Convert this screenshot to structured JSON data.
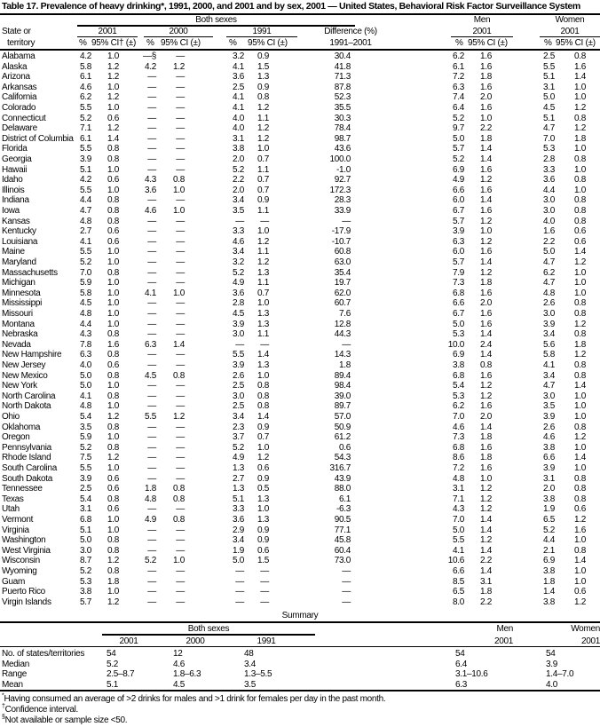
{
  "title": "Table 17. Prevalence of heavy drinking*, 1991, 2000, and 2001 and by sex, 2001 — United States, Behavioral Risk Factor Surveillance System",
  "header": {
    "both_sexes": "Both sexes",
    "men": "Men",
    "women": "Women",
    "state_line1": "State or",
    "state_line2": "territory",
    "y2001": "2001",
    "y2000": "2000",
    "y1991": "1991",
    "difference_line1": "Difference (%)",
    "difference_line2": "1991–2001",
    "pct": "%",
    "ci_first": "95% CI† (±)",
    "ci": "95% CI (±)"
  },
  "columns": [
    "State or territory",
    "2001 %",
    "2001 95% CI (±)",
    "2000 %",
    "2000 95% CI (±)",
    "1991 %",
    "1991 95% CI (±)",
    "Difference (%) 1991–2001",
    "Men 2001 %",
    "Men 2001 95% CI (±)",
    "Women 2001 %",
    "Women 2001 95% CI (±)"
  ],
  "rows": [
    [
      "Alabama",
      "4.2",
      "1.0",
      "—§",
      "—",
      "3.2",
      "0.9",
      "30.4",
      "6.2",
      "1.6",
      "2.5",
      "0.8"
    ],
    [
      "Alaska",
      "5.8",
      "1.2",
      "4.2",
      "1.2",
      "4.1",
      "1.5",
      "41.8",
      "6.1",
      "1.6",
      "5.5",
      "1.6"
    ],
    [
      "Arizona",
      "6.1",
      "1.2",
      "—",
      "—",
      "3.6",
      "1.3",
      "71.3",
      "7.2",
      "1.8",
      "5.1",
      "1.4"
    ],
    [
      "Arkansas",
      "4.6",
      "1.0",
      "—",
      "—",
      "2.5",
      "0.9",
      "87.8",
      "6.3",
      "1.6",
      "3.1",
      "1.0"
    ],
    [
      "California",
      "6.2",
      "1.2",
      "—",
      "—",
      "4.1",
      "0.8",
      "52.3",
      "7.4",
      "2.0",
      "5.0",
      "1.0"
    ],
    [
      "Colorado",
      "5.5",
      "1.0",
      "—",
      "—",
      "4.1",
      "1.2",
      "35.5",
      "6.4",
      "1.6",
      "4.5",
      "1.2"
    ],
    [
      "Connecticut",
      "5.2",
      "0.6",
      "—",
      "—",
      "4.0",
      "1.1",
      "30.3",
      "5.2",
      "1.0",
      "5.1",
      "0.8"
    ],
    [
      "Delaware",
      "7.1",
      "1.2",
      "—",
      "—",
      "4.0",
      "1.2",
      "78.4",
      "9.7",
      "2.2",
      "4.7",
      "1.2"
    ],
    [
      "District of Columbia",
      "6.1",
      "1.4",
      "—",
      "—",
      "3.1",
      "1.2",
      "98.7",
      "5.0",
      "1.8",
      "7.0",
      "1.8"
    ],
    [
      "Florida",
      "5.5",
      "0.8",
      "—",
      "—",
      "3.8",
      "1.0",
      "43.6",
      "5.7",
      "1.4",
      "5.3",
      "1.0"
    ],
    [
      "Georgia",
      "3.9",
      "0.8",
      "—",
      "—",
      "2.0",
      "0.7",
      "100.0",
      "5.2",
      "1.4",
      "2.8",
      "0.8"
    ],
    [
      "Hawaii",
      "5.1",
      "1.0",
      "—",
      "—",
      "5.2",
      "1.1",
      "-1.0",
      "6.9",
      "1.6",
      "3.3",
      "1.0"
    ],
    [
      "Idaho",
      "4.2",
      "0.6",
      "4.3",
      "0.8",
      "2.2",
      "0.7",
      "92.7",
      "4.9",
      "1.2",
      "3.6",
      "0.8"
    ],
    [
      "Illinois",
      "5.5",
      "1.0",
      "3.6",
      "1.0",
      "2.0",
      "0.7",
      "172.3",
      "6.6",
      "1.6",
      "4.4",
      "1.0"
    ],
    [
      "Indiana",
      "4.4",
      "0.8",
      "—",
      "—",
      "3.4",
      "0.9",
      "28.3",
      "6.0",
      "1.4",
      "3.0",
      "0.8"
    ],
    [
      "Iowa",
      "4.7",
      "0.8",
      "4.6",
      "1.0",
      "3.5",
      "1.1",
      "33.9",
      "6.7",
      "1.6",
      "3.0",
      "0.8"
    ],
    [
      "Kansas",
      "4.8",
      "0.8",
      "—",
      "—",
      "—",
      "—",
      "—",
      "5.7",
      "1.2",
      "4.0",
      "0.8"
    ],
    [
      "Kentucky",
      "2.7",
      "0.6",
      "—",
      "—",
      "3.3",
      "1.0",
      "-17.9",
      "3.9",
      "1.0",
      "1.6",
      "0.6"
    ],
    [
      "Louisiana",
      "4.1",
      "0.6",
      "—",
      "—",
      "4.6",
      "1.2",
      "-10.7",
      "6.3",
      "1.2",
      "2.2",
      "0.6"
    ],
    [
      "Maine",
      "5.5",
      "1.0",
      "—",
      "—",
      "3.4",
      "1.1",
      "60.8",
      "6.0",
      "1.6",
      "5.0",
      "1.4"
    ],
    [
      "Maryland",
      "5.2",
      "1.0",
      "—",
      "—",
      "3.2",
      "1.2",
      "63.0",
      "5.7",
      "1.4",
      "4.7",
      "1.2"
    ],
    [
      "Massachusetts",
      "7.0",
      "0.8",
      "—",
      "—",
      "5.2",
      "1.3",
      "35.4",
      "7.9",
      "1.2",
      "6.2",
      "1.0"
    ],
    [
      "Michigan",
      "5.9",
      "1.0",
      "—",
      "—",
      "4.9",
      "1.1",
      "19.7",
      "7.3",
      "1.8",
      "4.7",
      "1.0"
    ],
    [
      "Minnesota",
      "5.8",
      "1.0",
      "4.1",
      "1.0",
      "3.6",
      "0.7",
      "62.0",
      "6.8",
      "1.6",
      "4.8",
      "1.0"
    ],
    [
      "Mississippi",
      "4.5",
      "1.0",
      "—",
      "—",
      "2.8",
      "1.0",
      "60.7",
      "6.6",
      "2.0",
      "2.6",
      "0.8"
    ],
    [
      "Missouri",
      "4.8",
      "1.0",
      "—",
      "—",
      "4.5",
      "1.3",
      "7.6",
      "6.7",
      "1.6",
      "3.0",
      "0.8"
    ],
    [
      "Montana",
      "4.4",
      "1.0",
      "—",
      "—",
      "3.9",
      "1.3",
      "12.8",
      "5.0",
      "1.6",
      "3.9",
      "1.2"
    ],
    [
      "Nebraska",
      "4.3",
      "0.8",
      "—",
      "—",
      "3.0",
      "1.1",
      "44.3",
      "5.3",
      "1.4",
      "3.4",
      "0.8"
    ],
    [
      "Nevada",
      "7.8",
      "1.6",
      "6.3",
      "1.4",
      "—",
      "—",
      "—",
      "10.0",
      "2.4",
      "5.6",
      "1.8"
    ],
    [
      "New Hampshire",
      "6.3",
      "0.8",
      "—",
      "—",
      "5.5",
      "1.4",
      "14.3",
      "6.9",
      "1.4",
      "5.8",
      "1.2"
    ],
    [
      "New Jersey",
      "4.0",
      "0.6",
      "—",
      "—",
      "3.9",
      "1.3",
      "1.8",
      "3.8",
      "0.8",
      "4.1",
      "0.8"
    ],
    [
      "New Mexico",
      "5.0",
      "0.8",
      "4.5",
      "0.8",
      "2.6",
      "1.0",
      "89.4",
      "6.8",
      "1.6",
      "3.4",
      "0.8"
    ],
    [
      "New York",
      "5.0",
      "1.0",
      "—",
      "—",
      "2.5",
      "0.8",
      "98.4",
      "5.4",
      "1.2",
      "4.7",
      "1.4"
    ],
    [
      "North Carolina",
      "4.1",
      "0.8",
      "—",
      "—",
      "3.0",
      "0.8",
      "39.0",
      "5.3",
      "1.2",
      "3.0",
      "1.0"
    ],
    [
      "North Dakota",
      "4.8",
      "1.0",
      "—",
      "—",
      "2.5",
      "0.8",
      "89.7",
      "6.2",
      "1.6",
      "3.5",
      "1.0"
    ],
    [
      "Ohio",
      "5.4",
      "1.2",
      "5.5",
      "1.2",
      "3.4",
      "1.4",
      "57.0",
      "7.0",
      "2.0",
      "3.9",
      "1.0"
    ],
    [
      "Oklahoma",
      "3.5",
      "0.8",
      "—",
      "—",
      "2.3",
      "0.9",
      "50.9",
      "4.6",
      "1.4",
      "2.6",
      "0.8"
    ],
    [
      "Oregon",
      "5.9",
      "1.0",
      "—",
      "—",
      "3.7",
      "0.7",
      "61.2",
      "7.3",
      "1.8",
      "4.6",
      "1.2"
    ],
    [
      "Pennsylvania",
      "5.2",
      "0.8",
      "—",
      "—",
      "5.2",
      "1.0",
      "0.6",
      "6.8",
      "1.6",
      "3.8",
      "1.0"
    ],
    [
      "Rhode Island",
      "7.5",
      "1.2",
      "—",
      "—",
      "4.9",
      "1.2",
      "54.3",
      "8.6",
      "1.8",
      "6.6",
      "1.4"
    ],
    [
      "South Carolina",
      "5.5",
      "1.0",
      "—",
      "—",
      "1.3",
      "0.6",
      "316.7",
      "7.2",
      "1.6",
      "3.9",
      "1.0"
    ],
    [
      "South Dakota",
      "3.9",
      "0.6",
      "—",
      "—",
      "2.7",
      "0.9",
      "43.9",
      "4.8",
      "1.0",
      "3.1",
      "0.8"
    ],
    [
      "Tennessee",
      "2.5",
      "0.6",
      "1.8",
      "0.8",
      "1.3",
      "0.5",
      "88.0",
      "3.1",
      "1.2",
      "2.0",
      "0.8"
    ],
    [
      "Texas",
      "5.4",
      "0.8",
      "4.8",
      "0.8",
      "5.1",
      "1.3",
      "6.1",
      "7.1",
      "1.2",
      "3.8",
      "0.8"
    ],
    [
      "Utah",
      "3.1",
      "0.6",
      "—",
      "—",
      "3.3",
      "1.0",
      "-6.3",
      "4.3",
      "1.2",
      "1.9",
      "0.6"
    ],
    [
      "Vermont",
      "6.8",
      "1.0",
      "4.9",
      "0.8",
      "3.6",
      "1.3",
      "90.5",
      "7.0",
      "1.4",
      "6.5",
      "1.2"
    ],
    [
      "Virginia",
      "5.1",
      "1.0",
      "—",
      "—",
      "2.9",
      "0.9",
      "77.1",
      "5.0",
      "1.4",
      "5.2",
      "1.6"
    ],
    [
      "Washington",
      "5.0",
      "0.8",
      "—",
      "—",
      "3.4",
      "0.9",
      "45.8",
      "5.5",
      "1.2",
      "4.4",
      "1.0"
    ],
    [
      "West Virginia",
      "3.0",
      "0.8",
      "—",
      "—",
      "1.9",
      "0.6",
      "60.4",
      "4.1",
      "1.4",
      "2.1",
      "0.8"
    ],
    [
      "Wisconsin",
      "8.7",
      "1.2",
      "5.2",
      "1.0",
      "5.0",
      "1.5",
      "73.0",
      "10.6",
      "2.2",
      "6.9",
      "1.4"
    ],
    [
      "Wyoming",
      "5.2",
      "0.8",
      "—",
      "—",
      "—",
      "—",
      "—",
      "6.6",
      "1.4",
      "3.8",
      "1.0"
    ],
    [
      "Guam",
      "5.3",
      "1.8",
      "—",
      "—",
      "—",
      "—",
      "—",
      "8.5",
      "3.1",
      "1.8",
      "1.0"
    ],
    [
      "Puerto Rico",
      "3.8",
      "1.0",
      "—",
      "—",
      "—",
      "—",
      "—",
      "6.5",
      "1.8",
      "1.4",
      "0.6"
    ],
    [
      "Virgin Islands",
      "5.7",
      "1.2",
      "—",
      "—",
      "—",
      "—",
      "—",
      "8.0",
      "2.2",
      "3.8",
      "1.2"
    ]
  ],
  "summary": {
    "title": "Summary",
    "both_sexes": "Both sexes",
    "men": "Men",
    "women": "Women",
    "years": [
      "2001",
      "2000",
      "1991",
      "2001",
      "2001"
    ],
    "rows": [
      [
        "No. of states/territories",
        "54",
        "12",
        "48",
        "54",
        "54"
      ],
      [
        "Median",
        "5.2",
        "4.6",
        "3.4",
        "6.4",
        "3.9"
      ],
      [
        "Range",
        "2.5–8.7",
        "1.8–6.3",
        "1.3–5.5",
        "3.1–10.6",
        "1.4–7.0"
      ],
      [
        "Mean",
        "5.1",
        "4.5",
        "3.5",
        "6.3",
        "4.0"
      ]
    ]
  },
  "footnotes": [
    {
      "mark": "*",
      "text": "Having consumed an average of >2 drinks for males and >1 drink for females per day in the past month."
    },
    {
      "mark": "†",
      "text": "Confidence interval."
    },
    {
      "mark": "§",
      "text": "Not available or sample size <50."
    }
  ]
}
